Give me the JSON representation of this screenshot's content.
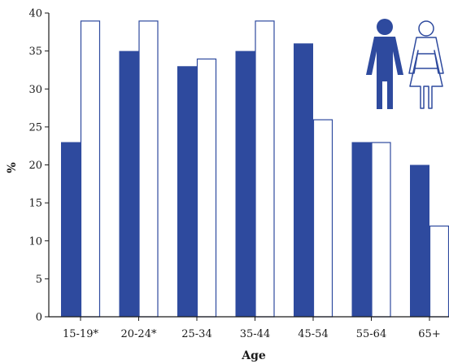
{
  "chart_data": {
    "type": "bar",
    "categories": [
      "15-19*",
      "20-24*",
      "25-34",
      "35-44",
      "45-54",
      "55-64",
      "65+"
    ],
    "series": [
      {
        "values": [
          23,
          35,
          33,
          35,
          36,
          23,
          20
        ]
      },
      {
        "values": [
          39,
          39,
          34,
          39,
          26,
          23,
          12
        ]
      }
    ],
    "title": "",
    "xlabel": "Age",
    "ylabel": "%",
    "ylim": [
      0,
      40
    ],
    "yticks": [
      0,
      5,
      10,
      15,
      20,
      25,
      30,
      35,
      40
    ],
    "grid": false,
    "legend": "top-right pictograms: filled male figure for first series, outlined female figure for second series"
  },
  "colors": {
    "male_fill": "#2e4a9e",
    "female_fill": "#ffffff",
    "female_stroke": "#2e4a9e",
    "axis": "#1a1a1a"
  },
  "icons": {
    "male": "male-figure-icon",
    "female": "female-figure-icon"
  }
}
